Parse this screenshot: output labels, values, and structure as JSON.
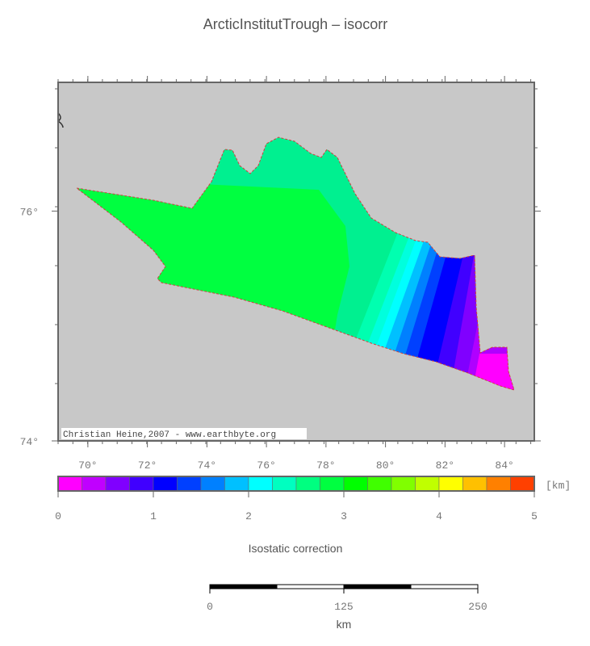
{
  "title": "ArcticInstitutTrough – isocorr",
  "map": {
    "credit": "Christian Heine,2007 - www.earthbyte.org",
    "xlim": [
      69,
      85
    ],
    "ylim": [
      74,
      77.12
    ],
    "xticks": [
      {
        "value": 70,
        "label": "70°"
      },
      {
        "value": 72,
        "label": "72°"
      },
      {
        "value": 74,
        "label": "74°"
      },
      {
        "value": 76,
        "label": "76°"
      },
      {
        "value": 78,
        "label": "78°"
      },
      {
        "value": 80,
        "label": "80°"
      },
      {
        "value": 82,
        "label": "82°"
      },
      {
        "value": 84,
        "label": "84°"
      }
    ],
    "yticks": [
      {
        "value": 74,
        "label": "74°"
      },
      {
        "value": 76,
        "label": "76°"
      }
    ]
  },
  "colorbar": {
    "label": "Isostatic correction",
    "unit": "[km]",
    "lim": [
      0,
      5
    ],
    "ticks": [
      0,
      1,
      2,
      3,
      4,
      5
    ],
    "colors": [
      "#ff00ff",
      "#c000ff",
      "#8000ff",
      "#4000ff",
      "#0000ff",
      "#0040ff",
      "#0080ff",
      "#00c0ff",
      "#00ffff",
      "#00ffc0",
      "#00ff80",
      "#00ff40",
      "#00ff00",
      "#40ff00",
      "#80ff00",
      "#c0ff00",
      "#ffff00",
      "#ffc000",
      "#ff8000",
      "#ff4000"
    ]
  },
  "scalebar": {
    "unit": "km",
    "lim": [
      0,
      250
    ],
    "ticks": [
      0,
      125,
      250
    ]
  }
}
